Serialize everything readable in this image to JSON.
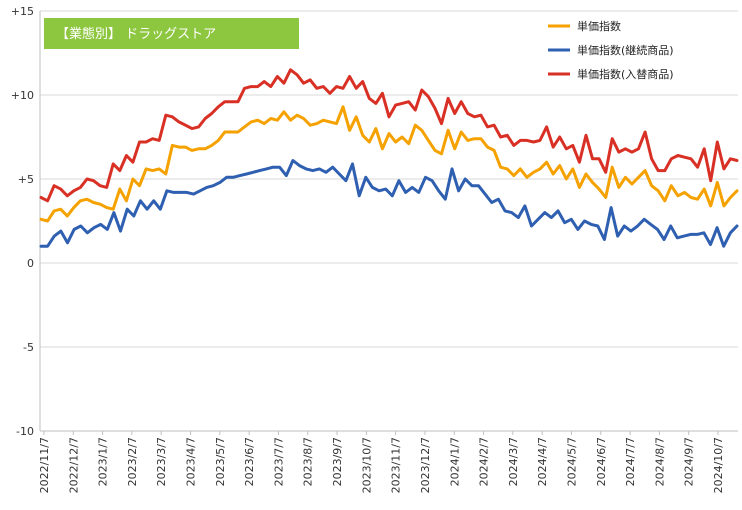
{
  "chart_data": {
    "type": "line",
    "title": "【業態別】 ドラッグストア",
    "title_color": "#8DC63F",
    "ylim": [
      -10,
      15
    ],
    "yticks": [
      15,
      10,
      5,
      0,
      -5,
      -10
    ],
    "ytick_labels": [
      "+15",
      "+10",
      "+5",
      "0",
      "-5",
      "-10"
    ],
    "grid": true,
    "legend_position": "top-right",
    "x_tick_labels": [
      "2022/11/7",
      "2022/12/7",
      "2023/1/7",
      "2023/2/7",
      "2023/3/7",
      "2023/4/7",
      "2023/5/7",
      "2023/6/7",
      "2023/7/7",
      "2023/8/7",
      "2023/9/7",
      "2023/10/7",
      "2023/11/7",
      "2023/12/7",
      "2024/1/7",
      "2024/2/7",
      "2024/3/7",
      "2024/4/7",
      "2024/5/7",
      "2024/6/7",
      "2024/7/7",
      "2024/8/7",
      "2024/9/7",
      "2024/10/7"
    ],
    "series": [
      {
        "name": "単価指数",
        "color": "#F5A200",
        "values": [
          2.6,
          2.5,
          3.1,
          3.2,
          2.8,
          3.3,
          3.7,
          3.8,
          3.6,
          3.5,
          3.3,
          3.2,
          4.4,
          3.7,
          5.0,
          4.6,
          5.6,
          5.5,
          5.6,
          5.3,
          7.0,
          6.9,
          6.9,
          6.7,
          6.8,
          6.8,
          7.0,
          7.3,
          7.8,
          7.8,
          7.8,
          8.1,
          8.4,
          8.5,
          8.3,
          8.6,
          8.5,
          9.0,
          8.5,
          8.8,
          8.6,
          8.2,
          8.3,
          8.5,
          8.4,
          8.3,
          9.3,
          7.9,
          8.7,
          7.6,
          7.2,
          8.0,
          6.8,
          7.7,
          7.2,
          7.5,
          7.1,
          8.2,
          7.9,
          7.3,
          6.7,
          6.5,
          7.9,
          6.8,
          7.8,
          7.3,
          7.4,
          7.4,
          6.9,
          6.7,
          5.7,
          5.6,
          5.2,
          5.6,
          5.1,
          5.4,
          5.6,
          6.0,
          5.3,
          5.8,
          5.0,
          5.6,
          4.5,
          5.3,
          4.8,
          4.4,
          3.9,
          5.7,
          4.5,
          5.1,
          4.7,
          5.1,
          5.5,
          4.6,
          4.3,
          3.7,
          4.6,
          4.0,
          4.2,
          3.9,
          3.8,
          4.4,
          3.4,
          4.8,
          3.4,
          3.9,
          4.3
        ]
      },
      {
        "name": "単価指数(継続商品)",
        "color": "#2E5FB0",
        "values": [
          1.0,
          1.0,
          1.6,
          1.9,
          1.2,
          2.0,
          2.2,
          1.8,
          2.1,
          2.3,
          2.0,
          3.0,
          1.9,
          3.2,
          2.8,
          3.7,
          3.2,
          3.7,
          3.2,
          4.3,
          4.2,
          4.2,
          4.2,
          4.1,
          4.3,
          4.5,
          4.6,
          4.8,
          5.1,
          5.1,
          5.2,
          5.3,
          5.4,
          5.5,
          5.6,
          5.7,
          5.7,
          5.2,
          6.1,
          5.8,
          5.6,
          5.5,
          5.6,
          5.4,
          5.7,
          5.3,
          4.9,
          5.9,
          4.0,
          5.1,
          4.5,
          4.3,
          4.4,
          4.0,
          4.9,
          4.2,
          4.5,
          4.2,
          5.1,
          4.9,
          4.3,
          3.8,
          5.6,
          4.3,
          5.0,
          4.6,
          4.6,
          4.1,
          3.6,
          3.8,
          3.1,
          3.0,
          2.7,
          3.4,
          2.2,
          2.6,
          3.0,
          2.7,
          3.1,
          2.4,
          2.6,
          2.0,
          2.5,
          2.3,
          2.2,
          1.4,
          3.3,
          1.6,
          2.2,
          1.9,
          2.2,
          2.6,
          2.3,
          2.0,
          1.4,
          2.2,
          1.5,
          1.6,
          1.7,
          1.7,
          1.8,
          1.1,
          2.1,
          1.0,
          1.8,
          2.2
        ]
      },
      {
        "name": "単価指数(入替商品)",
        "color": "#D93025",
        "values": [
          3.9,
          3.7,
          4.6,
          4.4,
          4.0,
          4.3,
          4.5,
          5.0,
          4.9,
          4.6,
          4.5,
          5.9,
          5.5,
          6.4,
          6.0,
          7.2,
          7.2,
          7.4,
          7.3,
          8.8,
          8.7,
          8.4,
          8.2,
          8.0,
          8.1,
          8.6,
          8.9,
          9.3,
          9.6,
          9.6,
          9.6,
          10.4,
          10.5,
          10.5,
          10.8,
          10.5,
          11.1,
          10.7,
          11.5,
          11.2,
          10.7,
          10.9,
          10.4,
          10.5,
          10.1,
          10.5,
          10.4,
          11.1,
          10.4,
          10.8,
          9.8,
          9.5,
          10.1,
          8.7,
          9.4,
          9.5,
          9.6,
          9.1,
          10.3,
          9.9,
          9.2,
          8.3,
          9.8,
          8.9,
          9.6,
          8.9,
          8.7,
          8.8,
          8.1,
          8.2,
          7.5,
          7.6,
          7.0,
          7.3,
          7.3,
          7.2,
          7.3,
          8.1,
          6.9,
          7.5,
          6.8,
          7.0,
          6.0,
          7.6,
          6.2,
          6.2,
          5.4,
          7.4,
          6.6,
          6.8,
          6.6,
          6.8,
          7.8,
          6.2,
          5.5,
          5.5,
          6.2,
          6.4,
          6.3,
          6.2,
          5.7,
          6.8,
          4.9,
          7.2,
          5.6,
          6.2,
          6.1
        ]
      }
    ]
  }
}
